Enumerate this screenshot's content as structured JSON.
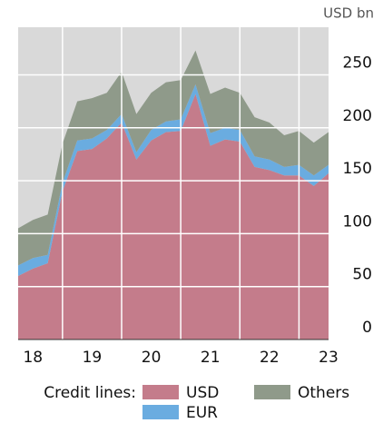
{
  "chart_data": {
    "type": "stacked_area",
    "unit_label": "USD bn",
    "legend_title": "Credit lines:",
    "legend": "bottom",
    "grid": true,
    "background": "#d9d9d9",
    "x": [
      2018.25,
      2018.5,
      2018.75,
      2019.0,
      2019.25,
      2019.5,
      2019.75,
      2020.0,
      2020.25,
      2020.5,
      2020.75,
      2021.0,
      2021.25,
      2021.5,
      2021.75,
      2022.0,
      2022.25,
      2022.5,
      2022.75,
      2023.0,
      2023.25,
      2023.5
    ],
    "xlim": [
      2018.25,
      2023.5
    ],
    "xticks": [
      {
        "value": 2018.5,
        "label": "18"
      },
      {
        "value": 2019.5,
        "label": "19"
      },
      {
        "value": 2020.5,
        "label": "20"
      },
      {
        "value": 2021.5,
        "label": "21"
      },
      {
        "value": 2022.5,
        "label": "22"
      },
      {
        "value": 2023.5,
        "label": "23"
      }
    ],
    "ylim": [
      0,
      295
    ],
    "yticks": [
      0,
      50,
      100,
      150,
      200,
      250
    ],
    "series": [
      {
        "name": "USD",
        "color": "#c47c8b",
        "values": [
          60,
          67,
          72,
          140,
          178,
          180,
          190,
          205,
          170,
          188,
          196,
          197,
          232,
          183,
          189,
          187,
          163,
          160,
          155,
          155,
          145,
          157
        ]
      },
      {
        "name": "EUR",
        "color": "#6aace0",
        "values": [
          10,
          10,
          8,
          8,
          10,
          10,
          8,
          8,
          7,
          10,
          10,
          11,
          9,
          12,
          11,
          11,
          10,
          10,
          8,
          10,
          10,
          8
        ]
      },
      {
        "name": "Others",
        "color": "#8f9a8a",
        "values": [
          35,
          36,
          38,
          37,
          37,
          38,
          35,
          40,
          36,
          35,
          37,
          37,
          32,
          37,
          38,
          35,
          37,
          35,
          30,
          32,
          31,
          31
        ]
      }
    ]
  }
}
